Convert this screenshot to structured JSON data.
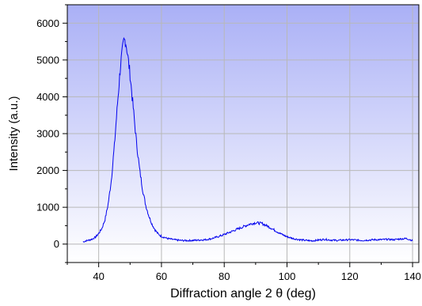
{
  "chart_data": {
    "type": "line",
    "xlabel": "Diffraction angle 2 θ (deg)",
    "ylabel": "Intensity (a.u.)",
    "xlim": [
      30,
      142
    ],
    "ylim": [
      -500,
      6500
    ],
    "x_ticks": [
      40,
      60,
      80,
      100,
      120,
      140
    ],
    "y_ticks": [
      0,
      1000,
      2000,
      3000,
      4000,
      5000,
      6000
    ],
    "grid": true,
    "background": "vertical gradient, blue at top fading to white at bottom",
    "series": [
      {
        "color": "#0000ee",
        "x": [
          35,
          36,
          37,
          38,
          39,
          40,
          41,
          42,
          43,
          44,
          45,
          46,
          47,
          48,
          48.5,
          49,
          50,
          51,
          52,
          53,
          54,
          55,
          56,
          57,
          58,
          59,
          60,
          62,
          64,
          66,
          68,
          70,
          72,
          74,
          76,
          78,
          80,
          82,
          84,
          86,
          88,
          90,
          92,
          94,
          96,
          98,
          100,
          102,
          104,
          106,
          108,
          110,
          112,
          114,
          116,
          118,
          120,
          122,
          124,
          126,
          128,
          130,
          132,
          134,
          136,
          138,
          139,
          140
        ],
        "y": [
          60,
          90,
          110,
          140,
          190,
          290,
          420,
          660,
          1080,
          1720,
          2660,
          3820,
          4900,
          5500,
          5550,
          5300,
          4600,
          3700,
          2800,
          2050,
          1480,
          1050,
          760,
          540,
          380,
          270,
          210,
          150,
          120,
          100,
          95,
          100,
          110,
          120,
          150,
          200,
          260,
          330,
          400,
          470,
          540,
          580,
          560,
          480,
          380,
          280,
          200,
          150,
          120,
          100,
          90,
          110,
          130,
          110,
          100,
          110,
          120,
          110,
          100,
          110,
          120,
          120,
          130,
          120,
          140,
          150,
          130,
          90
        ]
      }
    ]
  }
}
